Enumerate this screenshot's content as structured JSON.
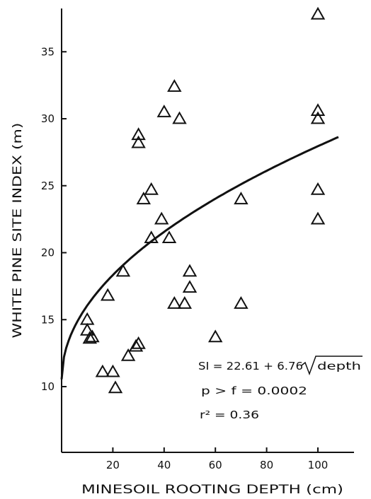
{
  "chart_data": {
    "type": "scatter",
    "xlabel": "MINESOIL ROOTING DEPTH (cm)",
    "ylabel": "WHITE PINE SITE INDEX (m)",
    "xlim": [
      0,
      110
    ],
    "ylim": [
      5,
      38
    ],
    "x_ticks": [
      20,
      40,
      60,
      80,
      100
    ],
    "y_ticks": [
      10,
      15,
      20,
      25,
      30,
      35
    ],
    "marker": "triangle-open",
    "grid": false,
    "points": [
      {
        "x": 10,
        "y": 15.0
      },
      {
        "x": 10,
        "y": 14.2
      },
      {
        "x": 11,
        "y": 13.6
      },
      {
        "x": 12,
        "y": 13.7
      },
      {
        "x": 16,
        "y": 11.1
      },
      {
        "x": 18,
        "y": 16.8
      },
      {
        "x": 20,
        "y": 11.1
      },
      {
        "x": 21,
        "y": 9.9
      },
      {
        "x": 24,
        "y": 18.6
      },
      {
        "x": 26,
        "y": 12.3
      },
      {
        "x": 29,
        "y": 13.0
      },
      {
        "x": 30,
        "y": 13.2
      },
      {
        "x": 30,
        "y": 28.8
      },
      {
        "x": 30,
        "y": 28.2
      },
      {
        "x": 32,
        "y": 24.0
      },
      {
        "x": 35,
        "y": 24.7
      },
      {
        "x": 35,
        "y": 21.1
      },
      {
        "x": 39,
        "y": 22.5
      },
      {
        "x": 40,
        "y": 30.5
      },
      {
        "x": 42,
        "y": 21.1
      },
      {
        "x": 44,
        "y": 32.4
      },
      {
        "x": 44,
        "y": 16.2
      },
      {
        "x": 46,
        "y": 30.0
      },
      {
        "x": 48,
        "y": 16.2
      },
      {
        "x": 50,
        "y": 18.6
      },
      {
        "x": 50,
        "y": 17.4
      },
      {
        "x": 60,
        "y": 13.7
      },
      {
        "x": 70,
        "y": 24.0
      },
      {
        "x": 70,
        "y": 16.2
      },
      {
        "x": 100,
        "y": 37.8
      },
      {
        "x": 100,
        "y": 30.6
      },
      {
        "x": 100,
        "y": 30.0
      },
      {
        "x": 100,
        "y": 24.7
      },
      {
        "x": 100,
        "y": 22.5
      }
    ],
    "fit": {
      "intercept": 22.61,
      "coef": 6.76,
      "transform": "sqrt",
      "x_range": [
        0,
        108
      ]
    },
    "annotations": {
      "equation_prefix": "SI = 22.61 + 6.76 ",
      "equation_radicand": "depth",
      "p_value": "p > f = 0.0002",
      "r_squared": "r² = 0.36"
    }
  }
}
